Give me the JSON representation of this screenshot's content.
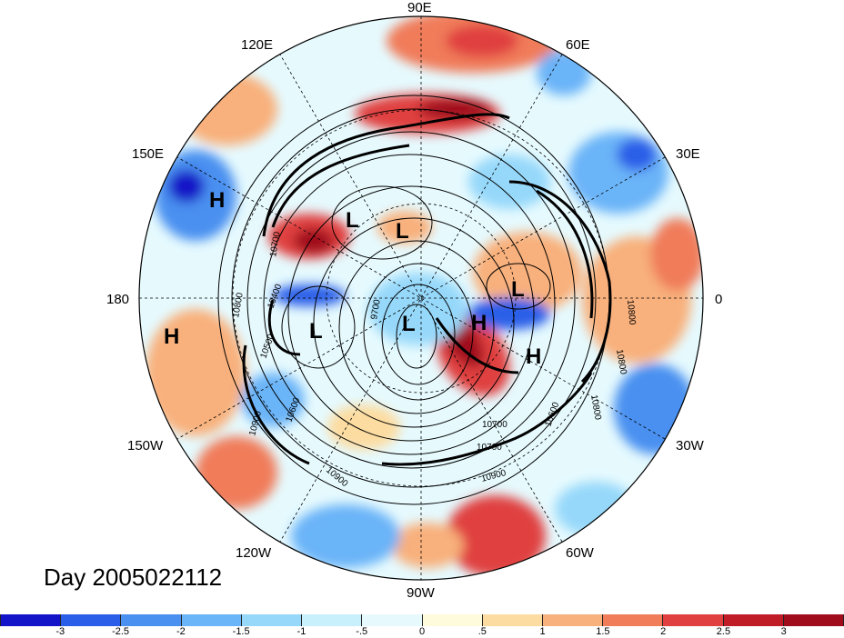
{
  "map": {
    "projection": "north polar stereographic",
    "longitude_labels": {
      "lon_90E": "90E",
      "lon_60E": "60E",
      "lon_30E": "30E",
      "lon_0": "0",
      "lon_30W": "30W",
      "lon_60W": "60W",
      "lon_90W": "90W",
      "lon_120W": "120W",
      "lon_150W": "150W",
      "lon_180": "180",
      "lon_150E": "150E",
      "lon_120E": "120E"
    },
    "pressure_systems": {
      "h1": "H",
      "h2": "H",
      "h3": "H",
      "h4": "H",
      "l1": "L",
      "l2": "L",
      "l3": "L",
      "l4": "L",
      "l5": "L"
    },
    "contour_labels": {
      "c1": "10800",
      "c2": "10400",
      "c3": "10500",
      "c4": "10900",
      "c5": "10600",
      "c6": "10700",
      "c7": "10900",
      "c8": "10800",
      "c9": "10600",
      "c10": "10800",
      "c11": "9700",
      "c12": "10700",
      "c13": "10900",
      "c14": "10700",
      "c15": "10800"
    },
    "date_caption": "Day 2005022112"
  },
  "colorbar": {
    "colors": [
      "#1414c8",
      "#2a5ee8",
      "#4a90f0",
      "#6ab4f8",
      "#96d8fa",
      "#c8f0fc",
      "#e6fafe",
      "#fefadc",
      "#fcdca0",
      "#f8b07c",
      "#f07c5a",
      "#e04040",
      "#c01c28",
      "#a00c1c"
    ],
    "tick_labels": [
      "-3",
      "-2.5",
      "-2",
      "-1.5",
      "-1",
      "-.5",
      "0",
      ".5",
      "1",
      "1.5",
      "2",
      "2.5",
      "3"
    ]
  }
}
